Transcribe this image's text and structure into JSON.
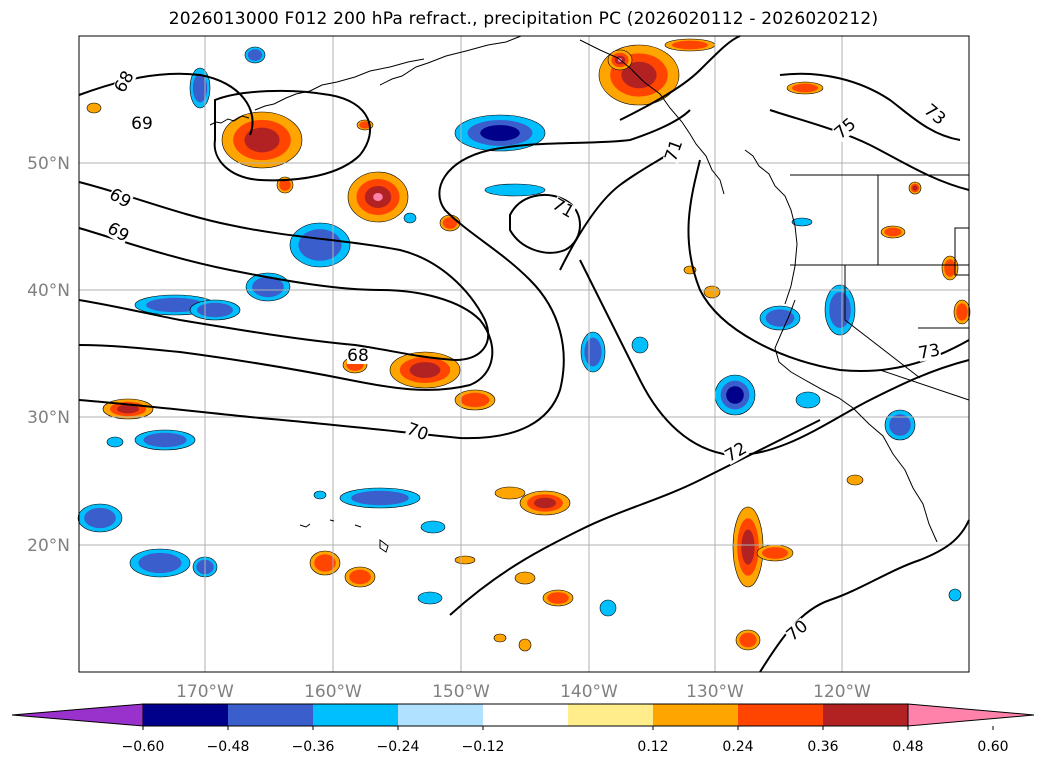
{
  "title": "2026013000 F012 200 hPa refract., precipitation PC (2026020112 - 2026020212)",
  "map": {
    "lat_labels": [
      "50°N",
      "40°N",
      "30°N",
      "20°N"
    ],
    "lon_labels": [
      "170°W",
      "160°W",
      "150°W",
      "140°W",
      "130°W",
      "120°W"
    ],
    "gridlines": true
  },
  "contours": {
    "color": "#000000",
    "labels": [
      "68",
      "69",
      "69",
      "69",
      "68",
      "70",
      "71",
      "71",
      "72",
      "73",
      "75",
      "73",
      "70"
    ]
  },
  "colorbar": {
    "tick_labels": [
      "−0.60",
      "−0.48",
      "−0.36",
      "−0.24",
      "−0.12",
      "0.12",
      "0.24",
      "0.36",
      "0.48",
      "0.60"
    ],
    "colors": [
      "#9932cc",
      "#00008b",
      "#3a5fcd",
      "#00bfff",
      "#b0e2ff",
      "#ffffff",
      "#ffec8b",
      "#ffa500",
      "#ff4500",
      "#b22222",
      "#ff82ab"
    ],
    "extend": "both"
  },
  "features": {
    "coastline_color": "#000000",
    "positive_fill": [
      "#ffa500",
      "#ff4500",
      "#b22222",
      "#ff82ab"
    ],
    "negative_fill": [
      "#00bfff",
      "#3a5fcd",
      "#00008b",
      "#9932cc"
    ]
  }
}
